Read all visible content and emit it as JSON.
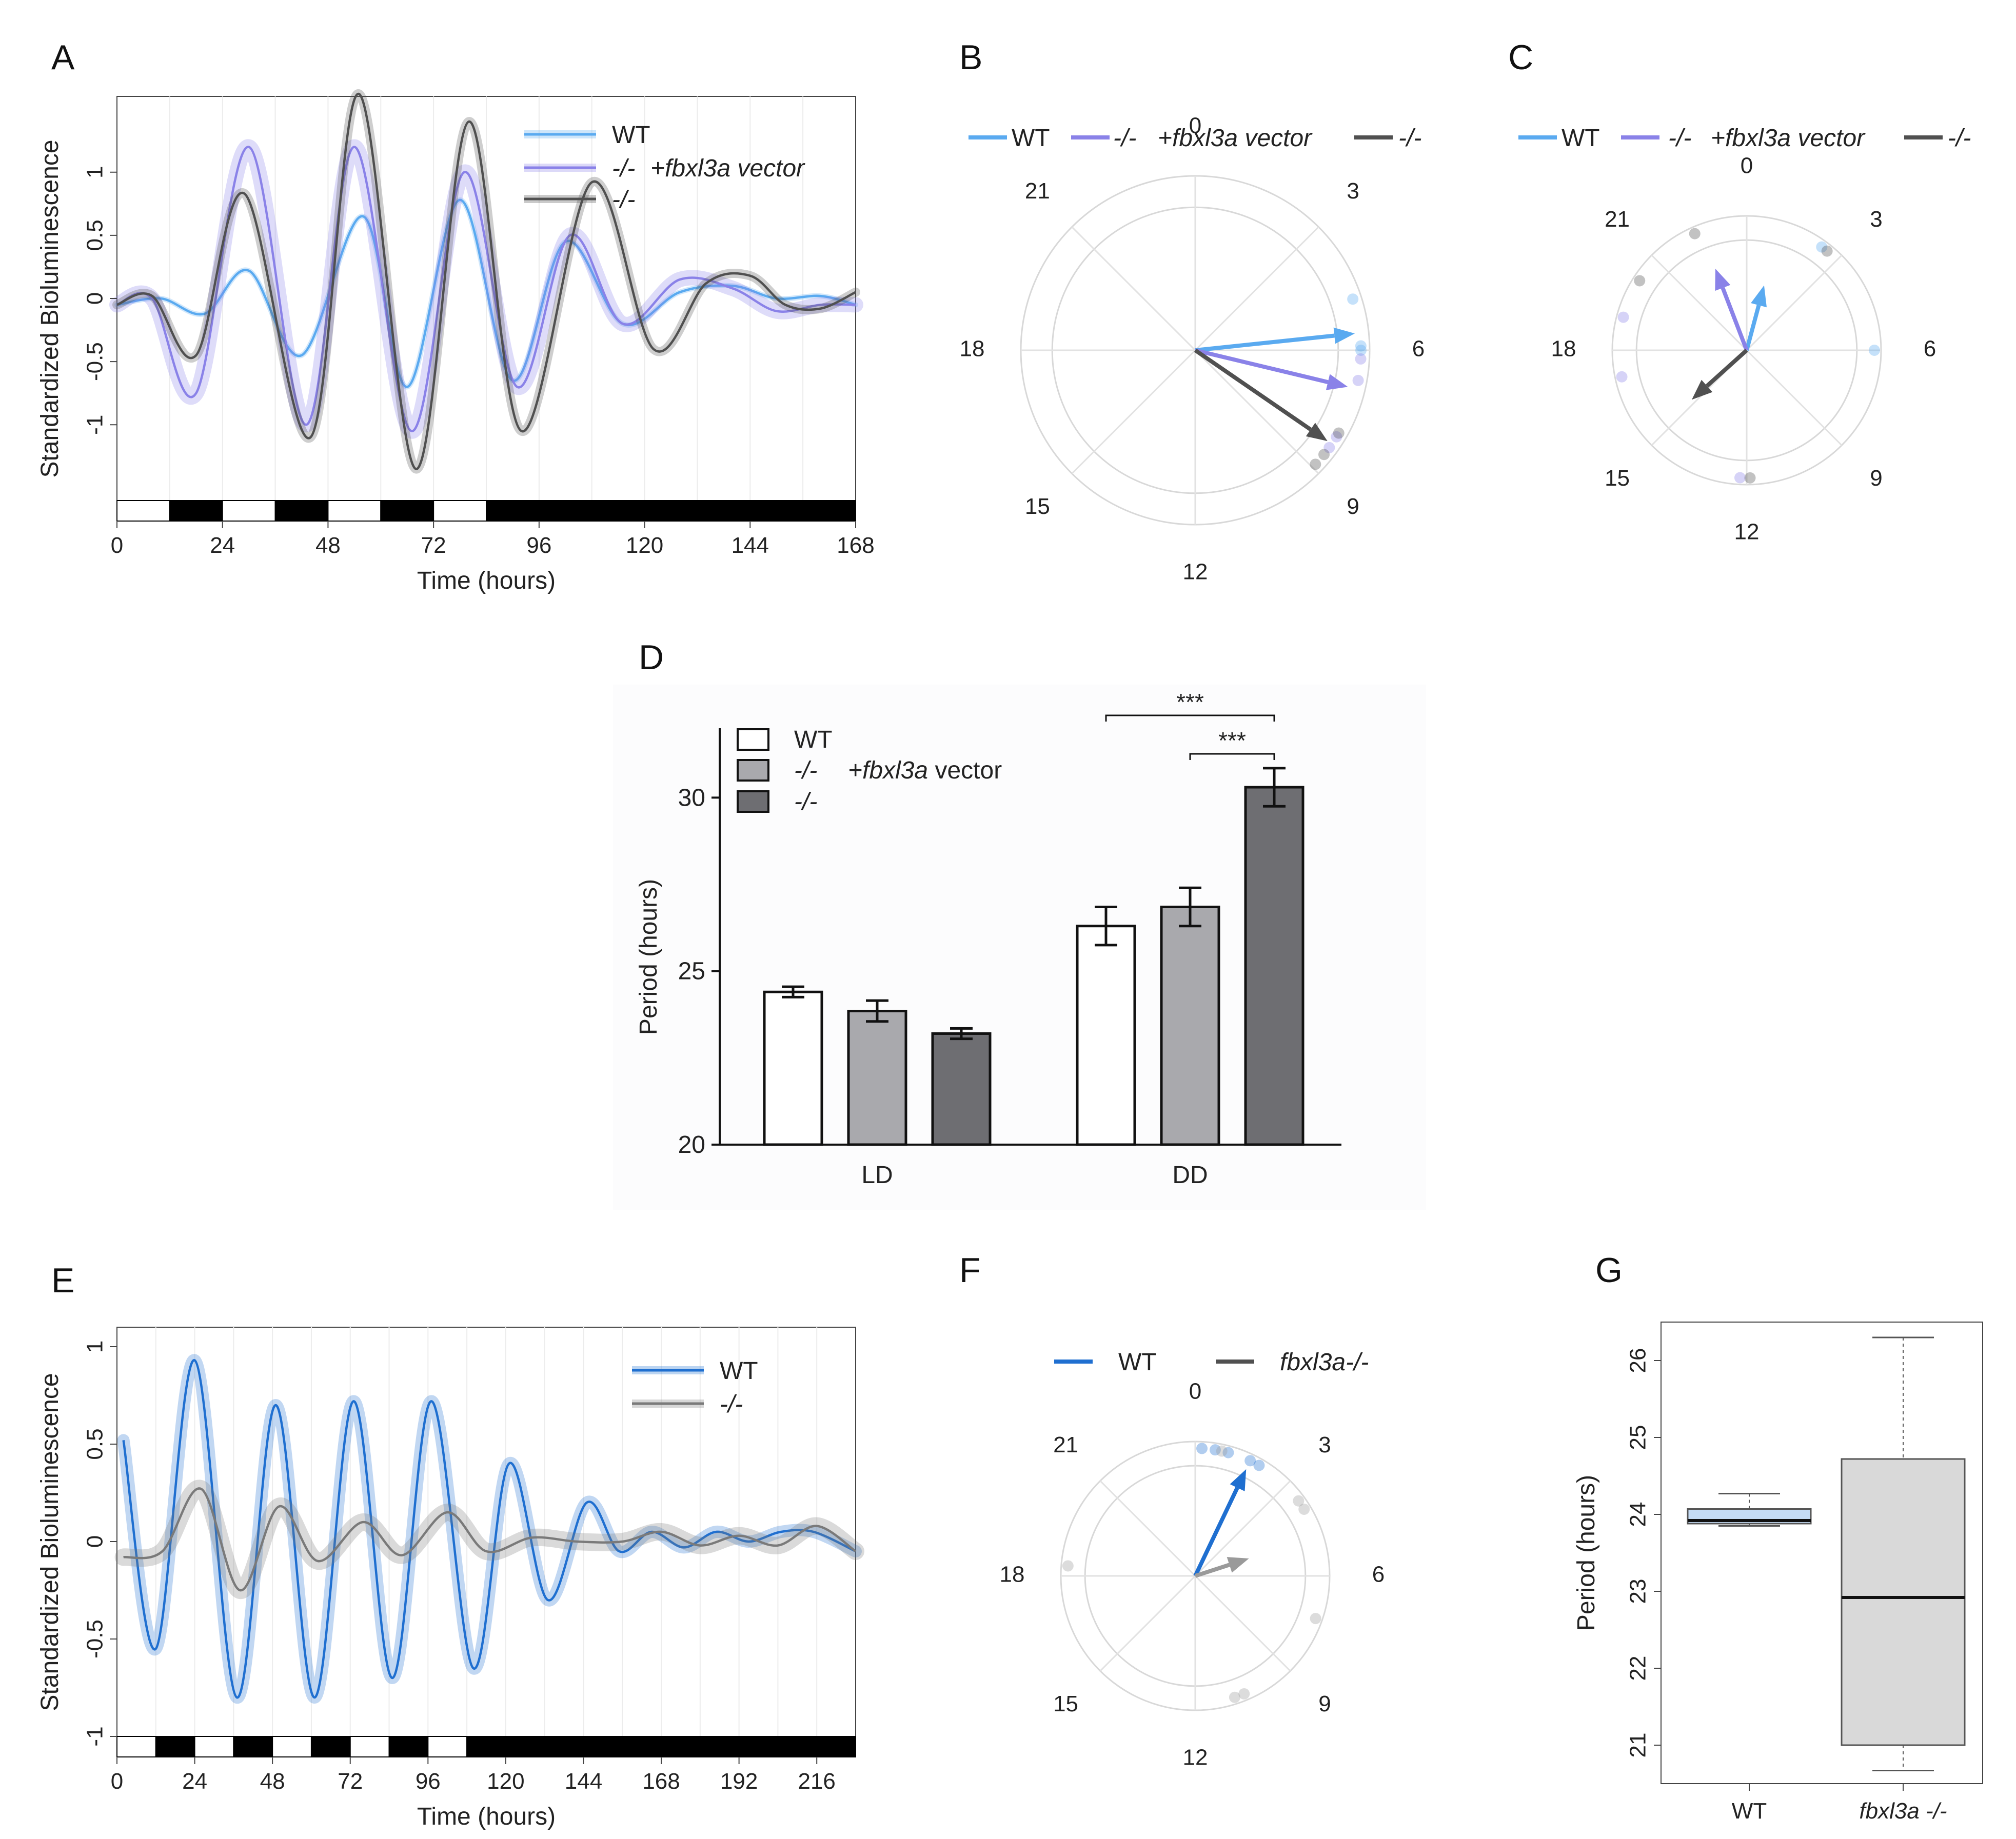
{
  "panels": {
    "A": {
      "label": "A"
    },
    "B": {
      "label": "B"
    },
    "C": {
      "label": "C"
    },
    "D": {
      "label": "D"
    },
    "E": {
      "label": "E"
    },
    "F": {
      "label": "F"
    },
    "G": {
      "label": "G"
    }
  },
  "colors": {
    "wt_light": "#5aaaf0",
    "vector": "#8a82e8",
    "ko": "#505050",
    "wt_dark": "#1f6fd0",
    "grey": "#7a7a7a",
    "white_bar": "#ffffff",
    "light_grey_bar": "#a9a9ad",
    "dark_grey_bar": "#6e6e72",
    "box_wt": "#c5dcf5",
    "box_ko": "#d9d9d9"
  },
  "chart_data": [
    {
      "id": "A",
      "type": "line",
      "title": "",
      "xlabel": "Time (hours)",
      "ylabel": "Standardized Bioluminescence",
      "xlim": [
        0,
        168
      ],
      "ylim": [
        -1.6,
        1.6
      ],
      "xticks": [
        "0",
        "24",
        "48",
        "72",
        "96",
        "120",
        "144",
        "168"
      ],
      "yticks": [
        "-1",
        "-0.5",
        "0",
        "0.5",
        "1"
      ],
      "legend": [
        "WT",
        "-/-",
        "+fbxl3a vector",
        "-/-"
      ],
      "light_dark_bars": [
        [
          0,
          12,
          "light"
        ],
        [
          12,
          24,
          "dark"
        ],
        [
          24,
          36,
          "light"
        ],
        [
          36,
          48,
          "dark"
        ],
        [
          48,
          60,
          "light"
        ],
        [
          60,
          72,
          "dark"
        ],
        [
          72,
          84,
          "light"
        ],
        [
          84,
          168,
          "dark"
        ]
      ],
      "series": [
        {
          "name": "WT",
          "x": [
            0,
            10,
            20,
            30,
            42,
            56,
            66,
            78,
            90,
            102,
            115,
            128,
            140,
            150,
            160,
            168
          ],
          "values": [
            -0.05,
            0.0,
            -0.12,
            0.22,
            -0.45,
            0.65,
            -0.7,
            0.78,
            -0.65,
            0.45,
            -0.2,
            0.05,
            0.1,
            0.0,
            0.02,
            -0.05
          ]
        },
        {
          "name": "-/- +fbxl3a vector",
          "x": [
            0,
            8,
            18,
            30,
            43,
            54,
            67,
            79,
            91,
            103,
            115,
            128,
            140,
            150,
            160,
            168
          ],
          "values": [
            -0.05,
            0.0,
            -0.75,
            1.2,
            -1.0,
            1.2,
            -1.05,
            1.0,
            -0.7,
            0.5,
            -0.2,
            0.15,
            0.08,
            -0.1,
            -0.05,
            -0.05
          ]
        },
        {
          "name": "-/-",
          "x": [
            0,
            8,
            18,
            29,
            44,
            55,
            68,
            80,
            92,
            108,
            122,
            134,
            144,
            152,
            160,
            168
          ],
          "values": [
            -0.05,
            0.02,
            -0.45,
            0.83,
            -1.1,
            1.62,
            -1.35,
            1.4,
            -1.05,
            0.92,
            -0.4,
            0.12,
            0.18,
            -0.05,
            -0.08,
            0.05
          ]
        }
      ]
    },
    {
      "id": "B",
      "type": "scatter",
      "subtype": "polar-phase",
      "tick_labels": [
        "0",
        "3",
        "6",
        "9",
        "12",
        "15",
        "18",
        "21"
      ],
      "legend": [
        "WT",
        "-/-",
        "+fbxl3a vector",
        "-/-"
      ],
      "vectors": [
        {
          "name": "WT",
          "phase": 5.6,
          "length": 0.92
        },
        {
          "name": "-/- +fbxl3a vector",
          "phase": 6.9,
          "length": 0.9
        },
        {
          "name": "-/-",
          "phase": 8.3,
          "length": 0.92
        }
      ],
      "points": [
        {
          "series": "WT",
          "phases": [
            4.8,
            5.9,
            6.0
          ]
        },
        {
          "series": "-/- +fbxl3a vector",
          "phases": [
            6.2,
            6.7,
            8.1,
            8.4
          ]
        },
        {
          "series": "-/-",
          "phases": [
            8.0,
            8.6,
            8.9
          ]
        }
      ]
    },
    {
      "id": "C",
      "type": "scatter",
      "subtype": "polar-phase",
      "tick_labels": [
        "0",
        "3",
        "6",
        "9",
        "12",
        "15",
        "18",
        "21"
      ],
      "legend": [
        "WT",
        "-/-",
        "+fbxl3a vector",
        "-/-"
      ],
      "vectors": [
        {
          "name": "WT",
          "phase": 1.0,
          "length": 0.5
        },
        {
          "name": "-/- +fbxl3a vector",
          "phase": 22.6,
          "length": 0.65
        },
        {
          "name": "-/-",
          "phase": 15.2,
          "length": 0.55
        }
      ],
      "points": [
        {
          "series": "WT",
          "phases": [
            2.4,
            6.0
          ]
        },
        {
          "series": "-/- +fbxl3a vector",
          "phases": [
            19.0,
            17.2,
            12.2
          ]
        },
        {
          "series": "-/-",
          "phases": [
            22.4,
            20.2,
            2.6,
            11.9
          ]
        }
      ]
    },
    {
      "id": "D",
      "type": "bar",
      "categories": [
        "LD",
        "DD"
      ],
      "ylabel": "Period (hours)",
      "ylim": [
        20,
        32
      ],
      "yticks": [
        "20",
        "25",
        "30"
      ],
      "legend": [
        "WT",
        "-/-",
        "+fbxl3a",
        "vector",
        "-/-"
      ],
      "series": [
        {
          "name": "WT",
          "values": [
            24.4,
            26.3
          ],
          "errors": [
            0.15,
            0.55
          ]
        },
        {
          "name": "-/- +fbxl3a vector",
          "values": [
            23.85,
            26.85
          ],
          "errors": [
            0.3,
            0.55
          ]
        },
        {
          "name": "-/-",
          "values": [
            23.2,
            30.3
          ],
          "errors": [
            0.15,
            0.55
          ]
        }
      ],
      "significance": [
        "***",
        "***"
      ]
    },
    {
      "id": "E",
      "type": "line",
      "xlabel": "Time (hours)",
      "ylabel": "Standardized Bioluminescence",
      "xlim": [
        0,
        228
      ],
      "ylim": [
        -1,
        1.1
      ],
      "xticks": [
        "0",
        "24",
        "48",
        "72",
        "96",
        "120",
        "144",
        "168",
        "192",
        "216"
      ],
      "yticks": [
        "-1",
        "-0.5",
        "0",
        "0.5",
        "1"
      ],
      "legend": [
        "WT",
        "-/-"
      ],
      "light_dark_bars": [
        [
          0,
          12,
          "light"
        ],
        [
          12,
          24,
          "dark"
        ],
        [
          24,
          36,
          "light"
        ],
        [
          36,
          48,
          "dark"
        ],
        [
          48,
          60,
          "light"
        ],
        [
          60,
          72,
          "dark"
        ],
        [
          72,
          84,
          "light"
        ],
        [
          84,
          96,
          "dark"
        ],
        [
          96,
          108,
          "light"
        ],
        [
          108,
          228,
          "dark"
        ]
      ],
      "series": [
        {
          "name": "WT",
          "x": [
            2,
            12,
            24,
            37,
            49,
            61,
            73,
            85,
            97,
            110,
            121,
            133,
            145,
            155,
            165,
            175,
            185,
            195,
            205,
            215,
            228
          ],
          "values": [
            0.52,
            -0.55,
            0.93,
            -0.8,
            0.7,
            -0.8,
            0.72,
            -0.7,
            0.72,
            -0.65,
            0.4,
            -0.3,
            0.2,
            -0.05,
            0.05,
            -0.03,
            0.05,
            0.0,
            0.05,
            0.05,
            -0.05
          ]
        },
        {
          "name": "-/-",
          "x": [
            2,
            14,
            26,
            38,
            50,
            62,
            76,
            88,
            102,
            114,
            128,
            142,
            156,
            168,
            180,
            192,
            204,
            216,
            228
          ],
          "values": [
            -0.08,
            -0.05,
            0.27,
            -0.25,
            0.18,
            -0.1,
            0.1,
            -0.07,
            0.15,
            -0.05,
            0.02,
            0.0,
            0.0,
            0.05,
            -0.02,
            0.03,
            -0.02,
            0.08,
            -0.05
          ]
        }
      ]
    },
    {
      "id": "F",
      "type": "scatter",
      "subtype": "polar-phase",
      "tick_labels": [
        "0",
        "3",
        "6",
        "9",
        "12",
        "15",
        "18",
        "21"
      ],
      "legend": [
        "WT",
        "fbxl3a-/-"
      ],
      "vectors": [
        {
          "name": "WT",
          "phase": 1.7,
          "length": 0.88
        },
        {
          "name": "fbxl3a-/-",
          "phase": 4.8,
          "length": 0.42
        }
      ],
      "points": [
        {
          "series": "WT",
          "phases": [
            0.2,
            0.6,
            1.0,
            1.7,
            2.0
          ]
        },
        {
          "series": "fbxl3a-/-",
          "phases": [
            0.8,
            3.6,
            3.9,
            7.3,
            10.5,
            10.8,
            18.3
          ]
        }
      ]
    },
    {
      "id": "G",
      "type": "bar",
      "subtype": "boxplot",
      "categories": [
        "WT",
        "fbxl3a -/-"
      ],
      "ylabel": "Period (hours)",
      "ylim": [
        20.5,
        26.5
      ],
      "yticks": [
        "21",
        "22",
        "23",
        "24",
        "25",
        "26"
      ],
      "boxes": [
        {
          "name": "WT",
          "min": 23.85,
          "q1": 23.88,
          "median": 23.92,
          "q3": 24.07,
          "max": 24.27
        },
        {
          "name": "fbxl3a -/-",
          "min": 20.67,
          "q1": 21.0,
          "median": 22.92,
          "q3": 24.72,
          "max": 26.3
        }
      ]
    }
  ]
}
